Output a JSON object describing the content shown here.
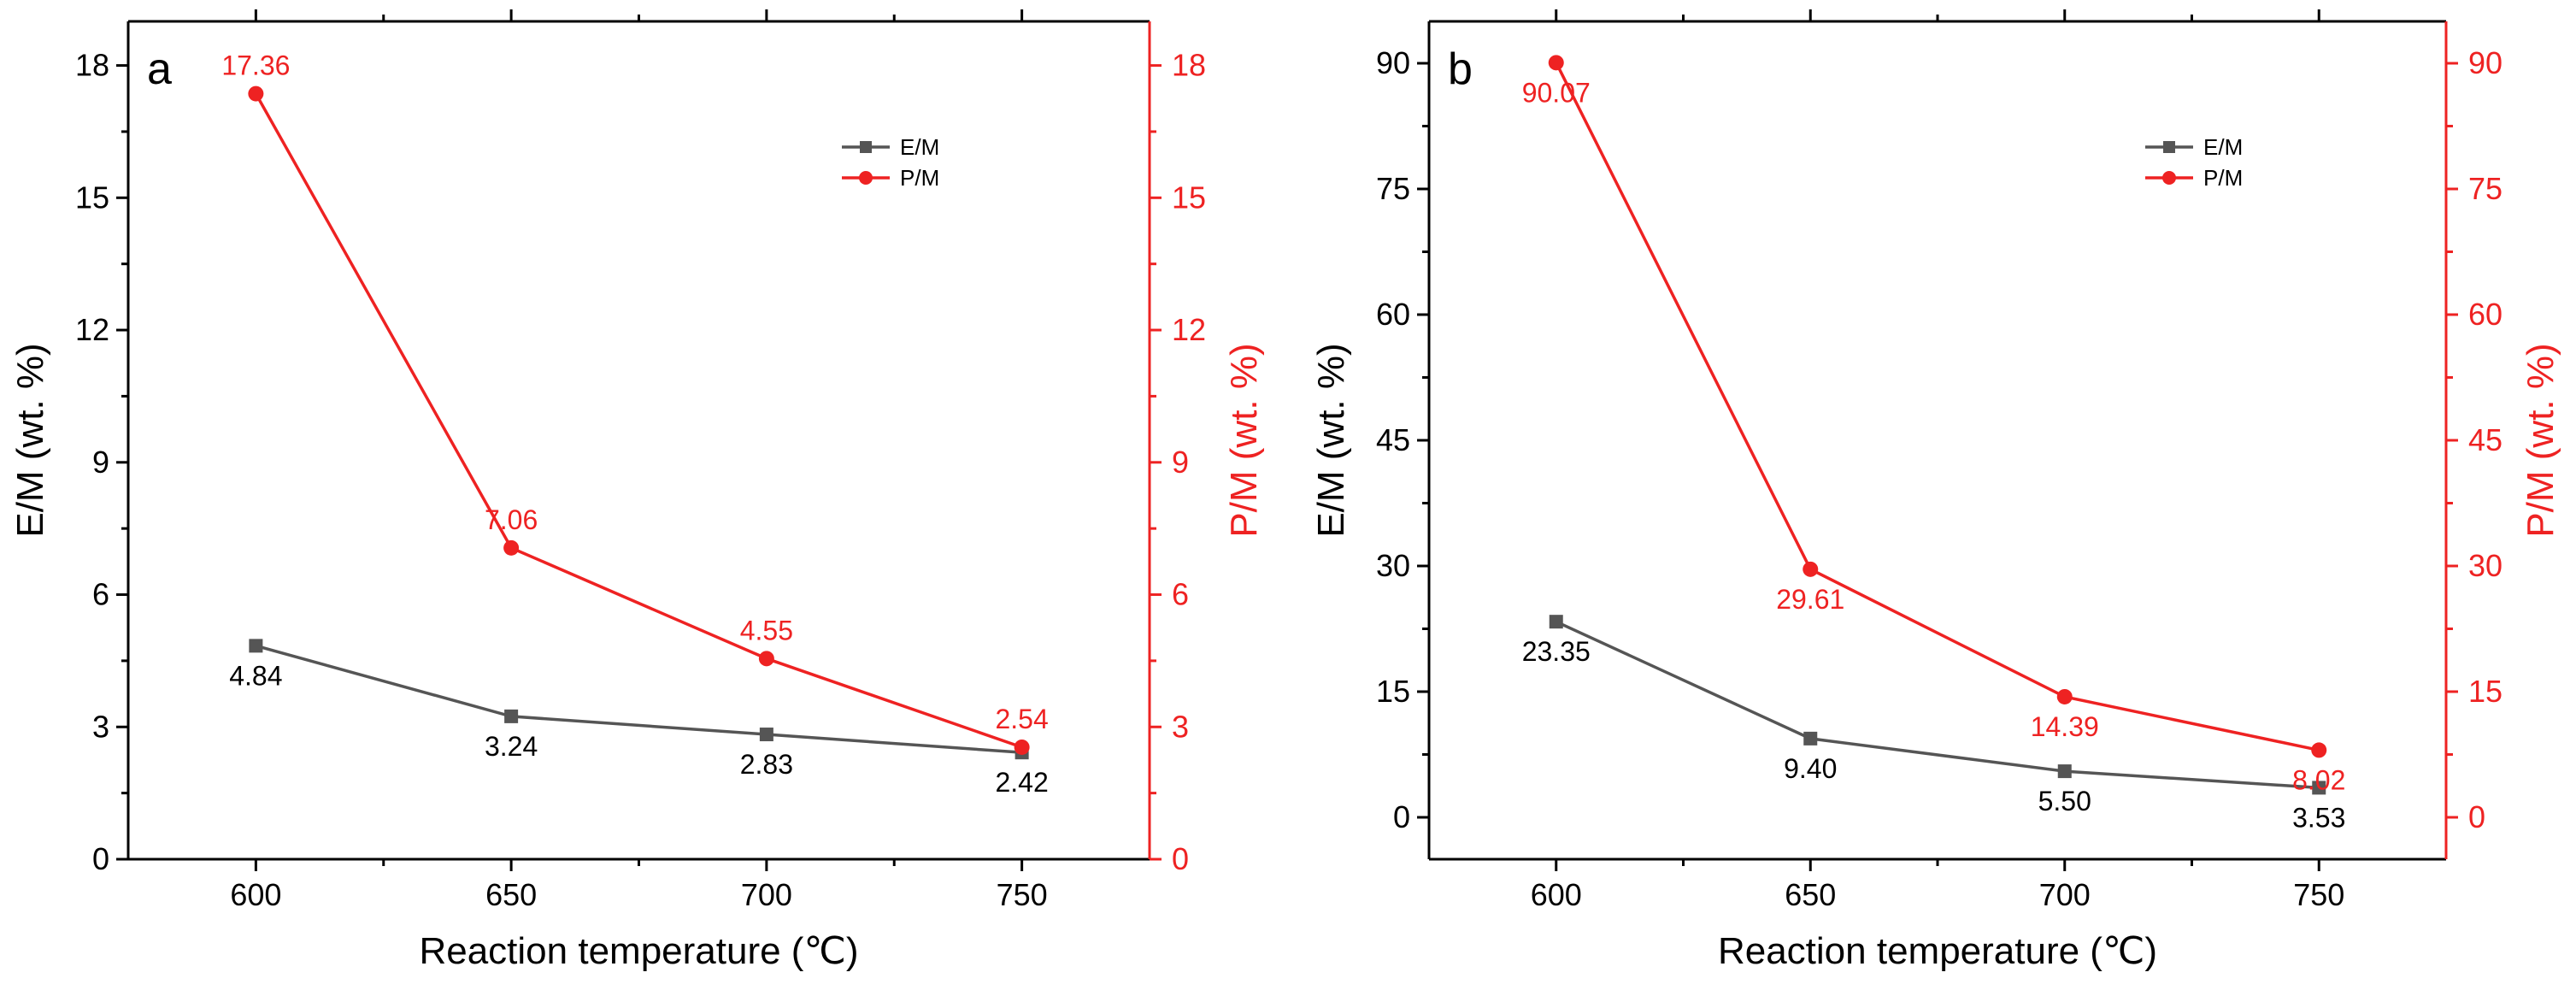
{
  "chart_data": [
    {
      "type": "line",
      "panel_label": "a",
      "xlabel": "Reaction temperature (℃)",
      "ylabel_left": "E/M (wt. %)",
      "ylabel_right": "P/M (wt. %)",
      "x": [
        600,
        650,
        700,
        750
      ],
      "xlim": [
        575,
        775
      ],
      "x_ticks": [
        600,
        650,
        700,
        750
      ],
      "ylim_left": [
        0,
        19
      ],
      "ylim_right": [
        0,
        19
      ],
      "y_ticks": [
        0,
        3,
        6,
        9,
        12,
        15,
        18
      ],
      "legend_position": "top-right",
      "series": [
        {
          "name": "E/M",
          "axis": "left",
          "color": "#555555",
          "marker": "square",
          "values": [
            4.84,
            3.24,
            2.83,
            2.42
          ],
          "labels": [
            "4.84",
            "3.24",
            "2.83",
            "2.42"
          ],
          "label_placement": "below"
        },
        {
          "name": "P/M",
          "axis": "right",
          "color": "#ee2222",
          "marker": "circle",
          "values": [
            17.36,
            7.06,
            4.55,
            2.54
          ],
          "labels": [
            "17.36",
            "7.06",
            "4.55",
            "2.54"
          ],
          "label_placement": "above"
        }
      ]
    },
    {
      "type": "line",
      "panel_label": "b",
      "xlabel": "Reaction temperature (℃)",
      "ylabel_left": "E/M (wt. %)",
      "ylabel_right": "P/M (wt. %)",
      "x": [
        600,
        650,
        700,
        750
      ],
      "xlim": [
        575,
        775
      ],
      "x_ticks": [
        600,
        650,
        700,
        750
      ],
      "ylim_left": [
        -5,
        95
      ],
      "ylim_right": [
        -5,
        95
      ],
      "y_ticks": [
        0,
        15,
        30,
        45,
        60,
        75,
        90
      ],
      "legend_position": "top-right",
      "series": [
        {
          "name": "E/M",
          "axis": "left",
          "color": "#555555",
          "marker": "square",
          "values": [
            23.35,
            9.4,
            5.5,
            3.53
          ],
          "labels": [
            "23.35",
            "9.40",
            "5.50",
            "3.53"
          ],
          "label_placement": "below"
        },
        {
          "name": "P/M",
          "axis": "right",
          "color": "#ee2222",
          "marker": "circle",
          "values": [
            90.07,
            29.61,
            14.39,
            8.02
          ],
          "labels": [
            "90.07",
            "29.61",
            "14.39",
            "8.02"
          ],
          "label_placement": "below"
        }
      ]
    }
  ]
}
